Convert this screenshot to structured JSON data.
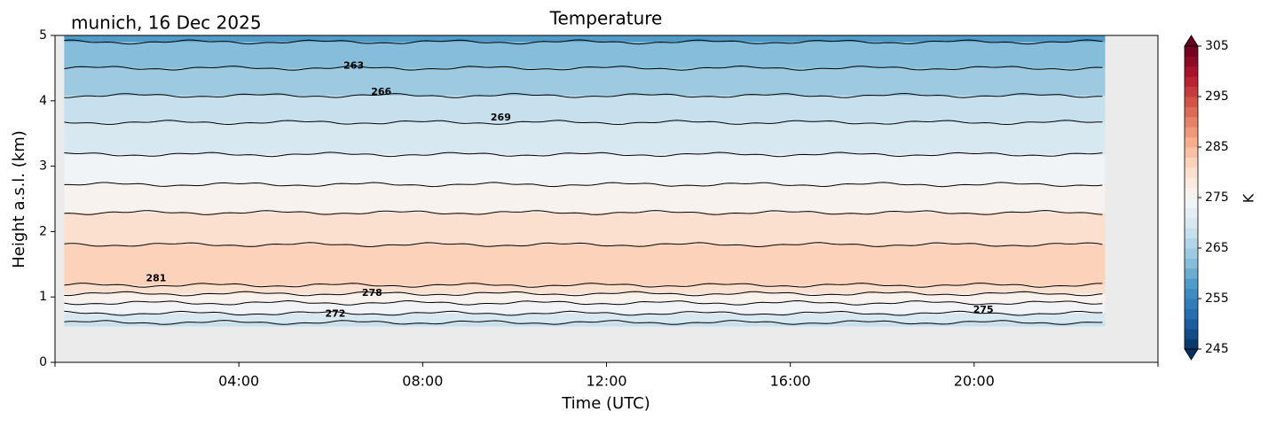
{
  "chart_data": {
    "type": "contour",
    "title": "Temperature",
    "annotation": "munich, 16 Dec 2025",
    "x_label": "Time (UTC)",
    "y_label": "Height a.s.l. (km)",
    "colorbar_label": "K",
    "cmap": "RdBu_r",
    "xlim": [
      0,
      24
    ],
    "xticks": [
      {
        "value": 4,
        "label": "04:00"
      },
      {
        "value": 8,
        "label": "08:00"
      },
      {
        "value": 12,
        "label": "12:00"
      },
      {
        "value": 16,
        "label": "16:00"
      },
      {
        "value": 20,
        "label": "20:00"
      }
    ],
    "ylim": [
      0,
      5
    ],
    "yticks": [
      0,
      1,
      2,
      3,
      4,
      5
    ],
    "clim": [
      245,
      305
    ],
    "cticks": [
      245,
      255,
      265,
      275,
      285,
      295,
      305
    ],
    "time_range": [
      0.2,
      22.85
    ],
    "height_range": [
      0.55,
      5
    ],
    "contours": [
      {
        "level": 269,
        "height": 0.61
      },
      {
        "level": 272,
        "height": 0.75
      },
      {
        "level": 275,
        "height": 0.91
      },
      {
        "level": 278,
        "height": 1.05
      },
      {
        "level": 281,
        "height": 1.18
      },
      {
        "level": 281,
        "height": 1.8
      },
      {
        "level": 278,
        "height": 2.29
      },
      {
        "level": 275,
        "height": 2.72
      },
      {
        "level": 272,
        "height": 3.18
      },
      {
        "level": 269,
        "height": 3.67
      },
      {
        "level": 266,
        "height": 4.08
      },
      {
        "level": 263,
        "height": 4.5
      },
      {
        "level": 260,
        "height": 4.9
      }
    ],
    "contour_labels": [
      {
        "level": 263,
        "x": 6.5,
        "height": 4.53
      },
      {
        "level": 266,
        "x": 7.1,
        "height": 4.13
      },
      {
        "level": 269,
        "x": 9.7,
        "height": 3.74
      },
      {
        "level": 281,
        "x": 2.2,
        "height": 1.28
      },
      {
        "level": 278,
        "x": 6.9,
        "height": 1.06
      },
      {
        "level": 272,
        "x": 6.1,
        "height": 0.74
      },
      {
        "level": 275,
        "x": 20.2,
        "height": 0.8
      }
    ]
  }
}
